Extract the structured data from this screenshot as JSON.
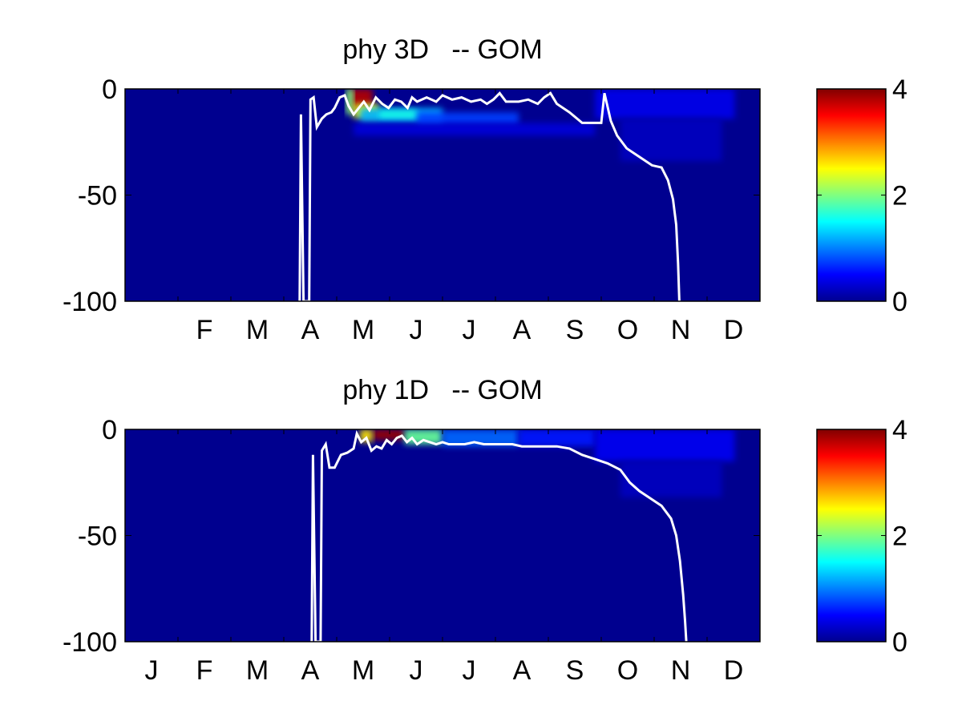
{
  "chart_data": [
    {
      "type": "heatmap",
      "title": "phy 3D   -- GOM",
      "ylim": [
        -100,
        0
      ],
      "yticks": [
        0,
        -50,
        -100
      ],
      "ytick_labels": [
        "0",
        "-50",
        "-100"
      ],
      "x_month_labels": [
        "F",
        "M",
        "A",
        "M",
        "J",
        "J",
        "A",
        "S",
        "O",
        "N",
        "D"
      ],
      "x_month_index": [
        1,
        2,
        3,
        4,
        5,
        6,
        7,
        8,
        9,
        10,
        11
      ],
      "colorbar": {
        "range": [
          0,
          4
        ],
        "ticks": [
          0,
          2,
          4
        ],
        "tick_labels": [
          "0",
          "2",
          "4"
        ],
        "colormap": "jet"
      },
      "background_color": "#00008f",
      "line_color": "#ffffff",
      "heat_patches": [
        {
          "x0": 0.354,
          "x1": 0.39,
          "y0": 0,
          "y1": -10,
          "value": 3.8
        },
        {
          "x0": 0.348,
          "x1": 0.36,
          "y0": 0,
          "y1": -12,
          "value": 2.0
        },
        {
          "x0": 0.36,
          "x1": 0.4,
          "y0": -7,
          "y1": -14,
          "value": 2.4
        },
        {
          "x0": 0.37,
          "x1": 0.5,
          "y0": -9,
          "y1": -16,
          "value": 1.2
        },
        {
          "x0": 0.4,
          "x1": 0.46,
          "y0": -10,
          "y1": -14,
          "value": 1.6
        },
        {
          "x0": 0.46,
          "x1": 0.62,
          "y0": -11,
          "y1": -17,
          "value": 0.75
        },
        {
          "x0": 0.36,
          "x1": 0.74,
          "y0": -16,
          "y1": -22,
          "value": 0.35
        },
        {
          "x0": 0.74,
          "x1": 0.96,
          "y0": 0,
          "y1": -14,
          "value": 0.42
        },
        {
          "x0": 0.78,
          "x1": 0.94,
          "y0": -14,
          "y1": -34,
          "value": 0.25
        }
      ],
      "line": [
        [
          0.275,
          -100
        ],
        [
          0.277,
          -12
        ],
        [
          0.281,
          -100
        ],
        [
          0.29,
          -100
        ],
        [
          0.292,
          -5
        ],
        [
          0.297,
          -4
        ],
        [
          0.302,
          -18
        ],
        [
          0.31,
          -14
        ],
        [
          0.317,
          -12
        ],
        [
          0.325,
          -11
        ],
        [
          0.33,
          -9
        ],
        [
          0.338,
          -4
        ],
        [
          0.346,
          -3
        ],
        [
          0.352,
          -8
        ],
        [
          0.36,
          -12
        ],
        [
          0.368,
          -9
        ],
        [
          0.376,
          -6
        ],
        [
          0.385,
          -10
        ],
        [
          0.395,
          -4
        ],
        [
          0.405,
          -7
        ],
        [
          0.415,
          -9
        ],
        [
          0.425,
          -5
        ],
        [
          0.435,
          -6
        ],
        [
          0.445,
          -9
        ],
        [
          0.452,
          -4
        ],
        [
          0.46,
          -6
        ],
        [
          0.475,
          -4
        ],
        [
          0.49,
          -6
        ],
        [
          0.5,
          -3
        ],
        [
          0.515,
          -5
        ],
        [
          0.53,
          -4
        ],
        [
          0.545,
          -6
        ],
        [
          0.56,
          -5
        ],
        [
          0.57,
          -7
        ],
        [
          0.58,
          -5
        ],
        [
          0.59,
          -2
        ],
        [
          0.6,
          -6
        ],
        [
          0.62,
          -6
        ],
        [
          0.635,
          -5
        ],
        [
          0.65,
          -7
        ],
        [
          0.66,
          -4
        ],
        [
          0.67,
          -2
        ],
        [
          0.68,
          -7
        ],
        [
          0.7,
          -11
        ],
        [
          0.72,
          -16
        ],
        [
          0.74,
          -16
        ],
        [
          0.75,
          -16
        ],
        [
          0.755,
          -2
        ],
        [
          0.765,
          -15
        ],
        [
          0.775,
          -22
        ],
        [
          0.79,
          -28
        ],
        [
          0.81,
          -32
        ],
        [
          0.83,
          -36
        ],
        [
          0.845,
          -37
        ],
        [
          0.855,
          -43
        ],
        [
          0.863,
          -52
        ],
        [
          0.868,
          -64
        ],
        [
          0.871,
          -82
        ],
        [
          0.873,
          -100
        ]
      ]
    },
    {
      "type": "heatmap",
      "title": "phy 1D   -- GOM",
      "ylim": [
        -100,
        0
      ],
      "yticks": [
        0,
        -50,
        -100
      ],
      "ytick_labels": [
        "0",
        "-50",
        "-100"
      ],
      "x_month_labels": [
        "J",
        "F",
        "M",
        "A",
        "M",
        "J",
        "J",
        "A",
        "S",
        "O",
        "N",
        "D"
      ],
      "x_month_index": [
        0,
        1,
        2,
        3,
        4,
        5,
        6,
        7,
        8,
        9,
        10,
        11
      ],
      "colorbar": {
        "range": [
          0,
          4
        ],
        "ticks": [
          0,
          2,
          4
        ],
        "tick_labels": [
          "0",
          "2",
          "4"
        ],
        "colormap": "jet"
      },
      "background_color": "#00008f",
      "line_color": "#ffffff",
      "heat_patches": [
        {
          "x0": 0.39,
          "x1": 0.44,
          "y0": 0,
          "y1": -5,
          "value": 3.9
        },
        {
          "x0": 0.37,
          "x1": 0.39,
          "y0": 0,
          "y1": -6,
          "value": 2.6
        },
        {
          "x0": 0.44,
          "x1": 0.5,
          "y0": 0,
          "y1": -7,
          "value": 1.9
        },
        {
          "x0": 0.5,
          "x1": 0.62,
          "y0": 0,
          "y1": -8,
          "value": 0.9
        },
        {
          "x0": 0.62,
          "x1": 0.74,
          "y0": 0,
          "y1": -8,
          "value": 0.6
        },
        {
          "x0": 0.74,
          "x1": 0.96,
          "y0": 0,
          "y1": -15,
          "value": 0.45
        },
        {
          "x0": 0.78,
          "x1": 0.94,
          "y0": -15,
          "y1": -32,
          "value": 0.25
        }
      ],
      "line": [
        [
          0.294,
          -100
        ],
        [
          0.296,
          -12
        ],
        [
          0.3,
          -100
        ],
        [
          0.308,
          -100
        ],
        [
          0.31,
          -10
        ],
        [
          0.316,
          -7
        ],
        [
          0.322,
          -18
        ],
        [
          0.33,
          -18
        ],
        [
          0.34,
          -12
        ],
        [
          0.35,
          -11
        ],
        [
          0.36,
          -9
        ],
        [
          0.365,
          -2
        ],
        [
          0.372,
          -6
        ],
        [
          0.38,
          -4
        ],
        [
          0.388,
          -10
        ],
        [
          0.396,
          -8
        ],
        [
          0.404,
          -9
        ],
        [
          0.412,
          -5
        ],
        [
          0.42,
          -7
        ],
        [
          0.428,
          -4
        ],
        [
          0.436,
          -3
        ],
        [
          0.444,
          -6
        ],
        [
          0.452,
          -4
        ],
        [
          0.46,
          -7
        ],
        [
          0.47,
          -5
        ],
        [
          0.48,
          -6
        ],
        [
          0.49,
          -7
        ],
        [
          0.5,
          -6
        ],
        [
          0.51,
          -7
        ],
        [
          0.52,
          -7
        ],
        [
          0.535,
          -7
        ],
        [
          0.55,
          -6
        ],
        [
          0.565,
          -7
        ],
        [
          0.58,
          -7
        ],
        [
          0.595,
          -7
        ],
        [
          0.61,
          -7
        ],
        [
          0.625,
          -8
        ],
        [
          0.64,
          -8
        ],
        [
          0.66,
          -8
        ],
        [
          0.68,
          -8
        ],
        [
          0.7,
          -9
        ],
        [
          0.72,
          -12
        ],
        [
          0.74,
          -14
        ],
        [
          0.76,
          -16
        ],
        [
          0.78,
          -19
        ],
        [
          0.795,
          -25
        ],
        [
          0.81,
          -29
        ],
        [
          0.83,
          -33
        ],
        [
          0.845,
          -36
        ],
        [
          0.86,
          -42
        ],
        [
          0.868,
          -50
        ],
        [
          0.874,
          -62
        ],
        [
          0.879,
          -78
        ],
        [
          0.882,
          -90
        ],
        [
          0.884,
          -100
        ]
      ]
    }
  ]
}
